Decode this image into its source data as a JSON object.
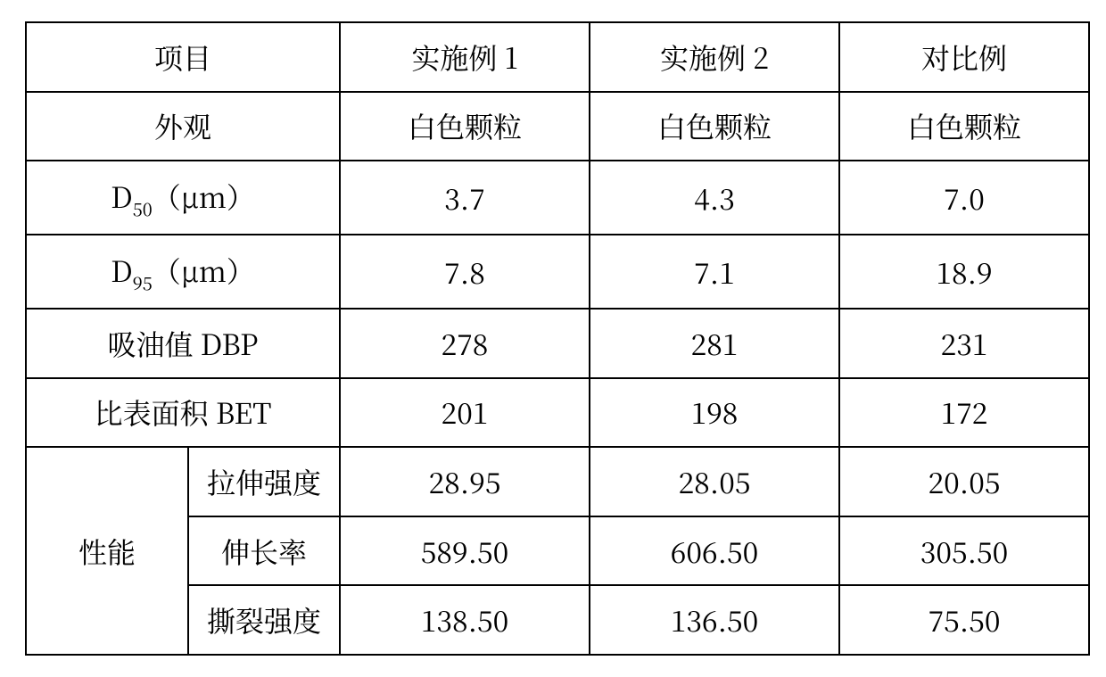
{
  "table": {
    "border_color": "#000000",
    "background_color": "#ffffff",
    "text_color": "#000000",
    "font_family": "SimSun",
    "font_size_pt": 24,
    "columns": [
      "项目",
      "实施例 1",
      "实施例 2",
      "对比例"
    ],
    "rows": [
      {
        "label": "外观",
        "values": [
          "白色颗粒",
          "白色颗粒",
          "白色颗粒"
        ]
      },
      {
        "label_html": "D<sub>50</sub>（µm）",
        "label_plain": "D50（µm）",
        "values": [
          "3.7",
          "4.3",
          "7.0"
        ]
      },
      {
        "label_html": "D<sub>95</sub>（µm）",
        "label_plain": "D95（µm）",
        "values": [
          "7.8",
          "7.1",
          "18.9"
        ]
      },
      {
        "label": "吸油值 DBP",
        "values": [
          "278",
          "281",
          "231"
        ]
      },
      {
        "label": "比表面积 BET",
        "values": [
          "201",
          "198",
          "172"
        ]
      }
    ],
    "group": {
      "group_label": "性能",
      "items": [
        {
          "sublabel": "拉伸强度",
          "values": [
            "28.95",
            "28.05",
            "20.05"
          ]
        },
        {
          "sublabel": "伸长率",
          "values": [
            "589.50",
            "606.50",
            "305.50"
          ]
        },
        {
          "sublabel": "撕裂强度",
          "values": [
            "138.50",
            "136.50",
            "75.50"
          ]
        }
      ]
    }
  }
}
